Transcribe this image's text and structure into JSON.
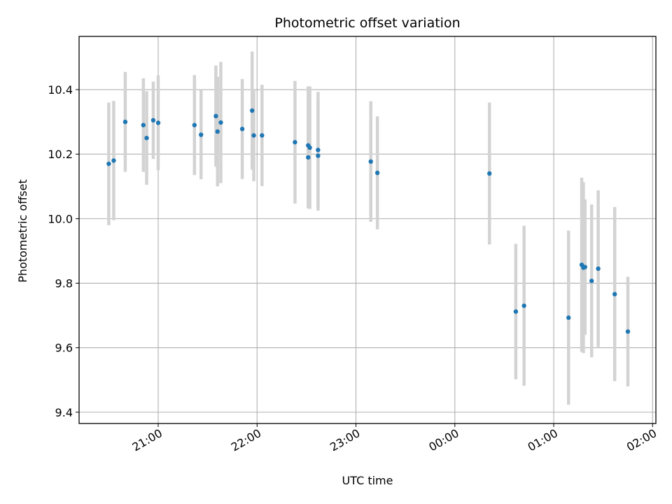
{
  "chart_data": {
    "type": "scatter",
    "title": "Photometric offset variation",
    "xlabel": "UTC time",
    "ylabel": "Photometric offset",
    "x_unit": "UTC",
    "xlim": [
      "20:12",
      "02:02"
    ],
    "ylim": [
      9.365,
      10.565
    ],
    "x_ticks": [
      "21:00",
      "22:00",
      "23:00",
      "00:00",
      "01:00",
      "02:00"
    ],
    "y_ticks": [
      9.4,
      9.6,
      9.8,
      10.0,
      10.2,
      10.4
    ],
    "y_tick_labels": [
      "9.4",
      "9.6",
      "9.8",
      "10.0",
      "10.2",
      "10.4"
    ],
    "grid": true,
    "error_bar_color": "#d3d3d3",
    "marker_color": "#1f77b4",
    "points": [
      {
        "t": "20:30",
        "y": 10.17,
        "err": 0.19
      },
      {
        "t": "20:33",
        "y": 10.18,
        "err": 0.185
      },
      {
        "t": "20:40",
        "y": 10.3,
        "err": 0.155
      },
      {
        "t": "20:51",
        "y": 10.29,
        "err": 0.145
      },
      {
        "t": "20:53",
        "y": 10.25,
        "err": 0.145
      },
      {
        "t": "20:57",
        "y": 10.305,
        "err": 0.12
      },
      {
        "t": "21:00",
        "y": 10.297,
        "err": 0.147
      },
      {
        "t": "21:22",
        "y": 10.29,
        "err": 0.155
      },
      {
        "t": "21:26",
        "y": 10.26,
        "err": 0.138
      },
      {
        "t": "21:35",
        "y": 10.318,
        "err": 0.157
      },
      {
        "t": "21:36",
        "y": 10.27,
        "err": 0.17
      },
      {
        "t": "21:38",
        "y": 10.298,
        "err": 0.188
      },
      {
        "t": "21:51",
        "y": 10.278,
        "err": 0.155
      },
      {
        "t": "21:57",
        "y": 10.335,
        "err": 0.183
      },
      {
        "t": "21:58",
        "y": 10.258,
        "err": 0.142
      },
      {
        "t": "22:03",
        "y": 10.258,
        "err": 0.157
      },
      {
        "t": "22:23",
        "y": 10.237,
        "err": 0.19
      },
      {
        "t": "22:31",
        "y": 10.19,
        "err": 0.158
      },
      {
        "t": "22:31",
        "y": 10.227,
        "err": 0.183
      },
      {
        "t": "22:32",
        "y": 10.22,
        "err": 0.19
      },
      {
        "t": "22:37",
        "y": 10.195,
        "err": 0.17
      },
      {
        "t": "22:37",
        "y": 10.213,
        "err": 0.18
      },
      {
        "t": "23:09",
        "y": 10.177,
        "err": 0.187
      },
      {
        "t": "23:13",
        "y": 10.142,
        "err": 0.175
      },
      {
        "t": "00:21",
        "y": 10.14,
        "err": 0.22
      },
      {
        "t": "00:37",
        "y": 9.712,
        "err": 0.21
      },
      {
        "t": "00:42",
        "y": 9.73,
        "err": 0.248
      },
      {
        "t": "01:09",
        "y": 9.693,
        "err": 0.27
      },
      {
        "t": "01:17",
        "y": 9.857,
        "err": 0.27
      },
      {
        "t": "01:18",
        "y": 9.848,
        "err": 0.265
      },
      {
        "t": "01:19",
        "y": 9.85,
        "err": 0.21
      },
      {
        "t": "01:23",
        "y": 9.807,
        "err": 0.237
      },
      {
        "t": "01:27",
        "y": 9.845,
        "err": 0.243
      },
      {
        "t": "01:37",
        "y": 9.766,
        "err": 0.27
      },
      {
        "t": "01:45",
        "y": 9.65,
        "err": 0.17
      }
    ]
  }
}
